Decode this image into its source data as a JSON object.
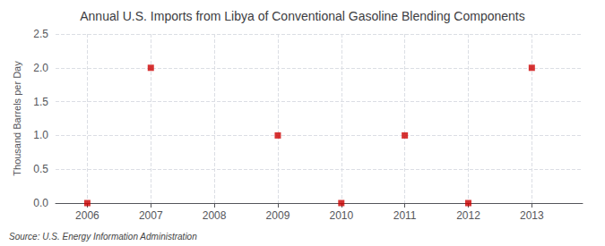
{
  "chart_data": {
    "type": "scatter",
    "title": "Annual U.S. Imports from Libya of Conventional Gasoline Blending Components",
    "ylabel": "Thousand Barrels per Day",
    "source": "Source: U.S. Energy Information Administration",
    "x": [
      2006,
      2007,
      2008,
      2009,
      2010,
      2011,
      2012,
      2013
    ],
    "values": [
      0.0,
      2.0,
      null,
      1.0,
      0.0,
      1.0,
      0.0,
      2.0
    ],
    "color": "#cc0000",
    "marker": "square",
    "xlim": [
      2005.5,
      2013.8
    ],
    "xticks": [
      2006,
      2007,
      2008,
      2009,
      2010,
      2011,
      2012,
      2013
    ],
    "ylim": [
      0,
      2.5
    ],
    "yticks": [
      {
        "value": 0,
        "label": "0.0"
      },
      0.5,
      {
        "value": 1,
        "label": "1.0"
      },
      1.5,
      {
        "value": 2,
        "label": "2.0"
      },
      2.5
    ],
    "grid": true
  }
}
